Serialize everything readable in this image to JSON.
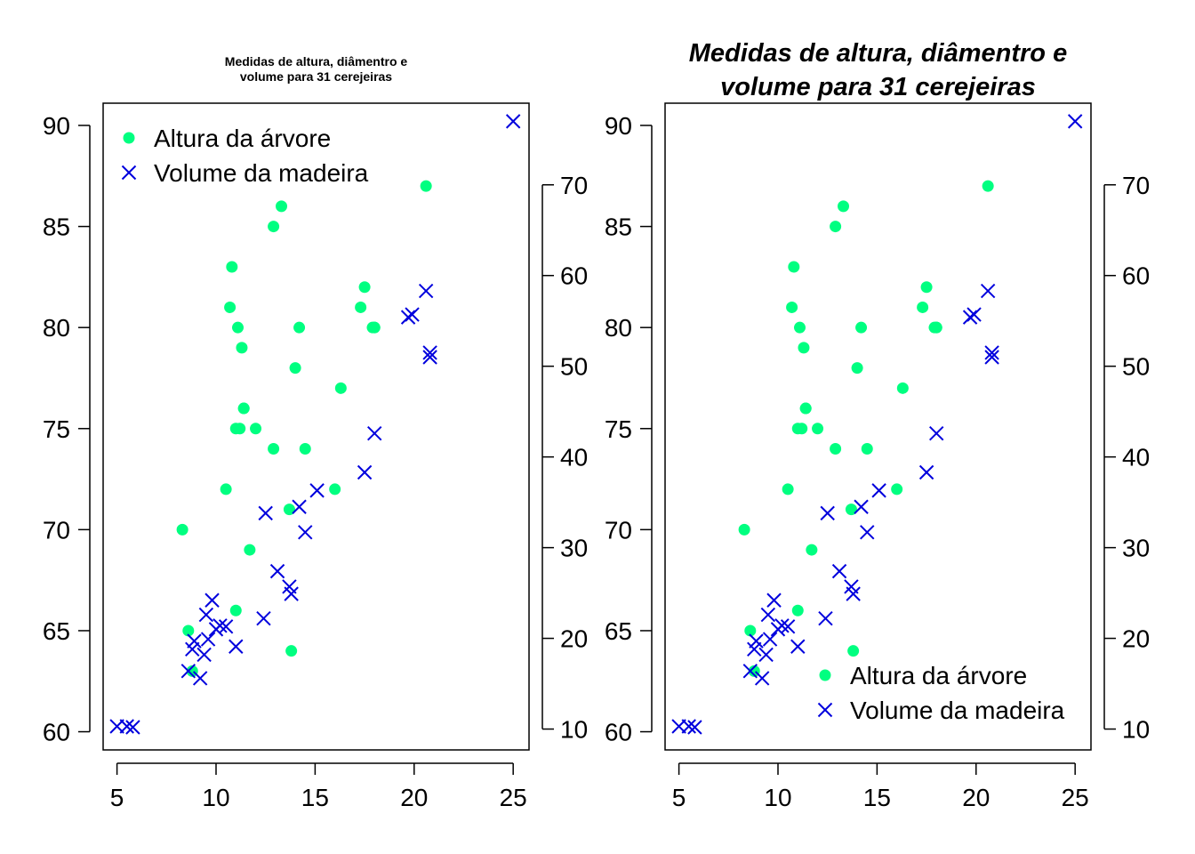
{
  "chart_data": [
    {
      "type": "scatter",
      "title": "Medidas de altura, diâmentro e\nvolume para 31 cerejeiras",
      "title_style": "small-bold",
      "xlim": [
        4.3,
        25.8
      ],
      "xticks": [
        "5",
        "10",
        "15",
        "20",
        "25"
      ],
      "ylim": [
        59.1,
        91.1
      ],
      "yticks_left": [
        "60",
        "65",
        "70",
        "75",
        "80",
        "85",
        "90"
      ],
      "y2lim": [
        7.7,
        79.0
      ],
      "yticks_right": [
        "10",
        "20",
        "30",
        "40",
        "50",
        "60",
        "70"
      ],
      "legend_position": "top-left",
      "series": [
        {
          "name": "Altura da árvore",
          "marker": "filled-circle",
          "color": "#00ff80",
          "axis": "left",
          "x": [
            8.3,
            8.6,
            8.8,
            10.5,
            10.7,
            10.8,
            11.0,
            11.0,
            11.1,
            11.2,
            11.3,
            11.4,
            11.4,
            11.7,
            12.0,
            12.9,
            12.9,
            13.3,
            13.7,
            13.8,
            14.0,
            14.2,
            14.5,
            16.0,
            16.3,
            17.3,
            17.5,
            17.9,
            18.0,
            18.0,
            20.6
          ],
          "y": [
            70,
            65,
            63,
            72,
            81,
            83,
            66,
            75,
            80,
            75,
            79,
            76,
            76,
            69,
            75,
            74,
            85,
            86,
            71,
            64,
            78,
            80,
            74,
            72,
            77,
            81,
            82,
            80,
            80,
            80,
            87
          ]
        },
        {
          "name": "Volume da madeira",
          "marker": "x",
          "color": "#0000dd",
          "axis": "right",
          "x": [
            5.0,
            5.5,
            5.8,
            8.6,
            8.8,
            8.9,
            9.2,
            9.4,
            9.5,
            9.6,
            9.8,
            10.0,
            10.2,
            10.5,
            11.0,
            12.4,
            12.5,
            13.1,
            13.7,
            13.8,
            14.2,
            14.5,
            15.1,
            17.5,
            18.0,
            19.7,
            19.9,
            20.6,
            20.8,
            20.8,
            25.0
          ],
          "y": [
            10.3,
            10.3,
            10.2,
            16.4,
            18.8,
            19.7,
            15.6,
            18.2,
            22.6,
            19.9,
            24.2,
            21.0,
            21.4,
            21.3,
            19.1,
            22.2,
            33.8,
            27.4,
            25.7,
            24.9,
            34.5,
            31.7,
            36.3,
            38.3,
            42.6,
            55.4,
            55.7,
            58.3,
            51.5,
            51.0,
            77.0
          ]
        }
      ]
    },
    {
      "type": "scatter",
      "title": "Medidas de altura, diâmentro e\nvolume para 31 cerejeiras",
      "title_style": "large-bold-italic",
      "xlim": [
        4.3,
        25.8
      ],
      "xticks": [
        "5",
        "10",
        "15",
        "20",
        "25"
      ],
      "ylim": [
        59.1,
        91.1
      ],
      "yticks_left": [
        "60",
        "65",
        "70",
        "75",
        "80",
        "85",
        "90"
      ],
      "y2lim": [
        7.7,
        79.0
      ],
      "yticks_right": [
        "10",
        "20",
        "30",
        "40",
        "50",
        "60",
        "70"
      ],
      "legend_position": "bottom-right",
      "series": [
        {
          "name": "Altura da árvore",
          "marker": "filled-circle",
          "color": "#00ff80",
          "axis": "left",
          "x": [
            8.3,
            8.6,
            8.8,
            10.5,
            10.7,
            10.8,
            11.0,
            11.0,
            11.1,
            11.2,
            11.3,
            11.4,
            11.4,
            11.7,
            12.0,
            12.9,
            12.9,
            13.3,
            13.7,
            13.8,
            14.0,
            14.2,
            14.5,
            16.0,
            16.3,
            17.3,
            17.5,
            17.9,
            18.0,
            18.0,
            20.6
          ],
          "y": [
            70,
            65,
            63,
            72,
            81,
            83,
            66,
            75,
            80,
            75,
            79,
            76,
            76,
            69,
            75,
            74,
            85,
            86,
            71,
            64,
            78,
            80,
            74,
            72,
            77,
            81,
            82,
            80,
            80,
            80,
            87
          ]
        },
        {
          "name": "Volume da madeira",
          "marker": "x",
          "color": "#0000dd",
          "axis": "right",
          "x": [
            5.0,
            5.5,
            5.8,
            8.6,
            8.8,
            8.9,
            9.2,
            9.4,
            9.5,
            9.6,
            9.8,
            10.0,
            10.2,
            10.5,
            11.0,
            12.4,
            12.5,
            13.1,
            13.7,
            13.8,
            14.2,
            14.5,
            15.1,
            17.5,
            18.0,
            19.7,
            19.9,
            20.6,
            20.8,
            20.8,
            25.0
          ],
          "y": [
            10.3,
            10.3,
            10.2,
            16.4,
            18.8,
            19.7,
            15.6,
            18.2,
            22.6,
            19.9,
            24.2,
            21.0,
            21.4,
            21.3,
            19.1,
            22.2,
            33.8,
            27.4,
            25.7,
            24.9,
            34.5,
            31.7,
            36.3,
            38.3,
            42.6,
            55.4,
            55.7,
            58.3,
            51.5,
            51.0,
            77.0
          ]
        }
      ]
    }
  ]
}
